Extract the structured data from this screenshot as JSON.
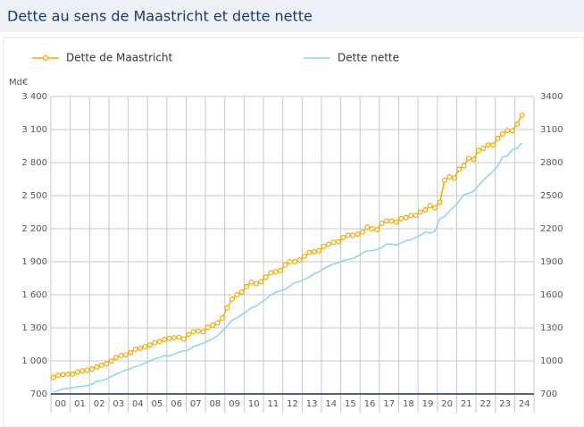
{
  "chart_data": {
    "type": "line",
    "title": "Dette au sens de Maastricht et dette nette",
    "y_label": "Md€",
    "categories": [
      "00",
      null,
      null,
      null,
      "01",
      null,
      null,
      null,
      "02",
      null,
      null,
      null,
      "03",
      null,
      null,
      null,
      "04",
      null,
      null,
      null,
      "05",
      null,
      null,
      null,
      "06",
      null,
      null,
      null,
      "07",
      null,
      null,
      null,
      "08",
      null,
      null,
      null,
      "09",
      null,
      null,
      null,
      "10",
      null,
      null,
      null,
      "11",
      null,
      null,
      null,
      "12",
      null,
      null,
      null,
      "13",
      null,
      null,
      null,
      "14",
      null,
      null,
      null,
      "15",
      null,
      null,
      null,
      "16",
      null,
      null,
      null,
      "17",
      null,
      null,
      null,
      "18",
      null,
      null,
      null,
      "19",
      null,
      null,
      null,
      "20",
      null,
      null,
      null,
      "21",
      null,
      null,
      null,
      "22",
      null,
      null,
      null,
      "23",
      null,
      null,
      null,
      "24",
      null
    ],
    "series": [
      {
        "name": "Dette de Maastricht",
        "color": "#f5a800",
        "markers": true,
        "values": [
          850,
          870,
          875,
          880,
          880,
          900,
          910,
          915,
          925,
          945,
          960,
          975,
          1000,
          1030,
          1050,
          1055,
          1075,
          1105,
          1115,
          1130,
          1145,
          1165,
          1175,
          1195,
          1205,
          1210,
          1215,
          1200,
          1240,
          1265,
          1270,
          1265,
          1305,
          1325,
          1345,
          1390,
          1480,
          1560,
          1600,
          1625,
          1675,
          1715,
          1700,
          1720,
          1760,
          1800,
          1810,
          1820,
          1870,
          1900,
          1900,
          1915,
          1950,
          1985,
          1990,
          2000,
          2040,
          2060,
          2075,
          2080,
          2120,
          2140,
          2140,
          2150,
          2170,
          2215,
          2200,
          2190,
          2250,
          2270,
          2270,
          2260,
          2290,
          2300,
          2320,
          2320,
          2350,
          2370,
          2410,
          2390,
          2440,
          2640,
          2670,
          2660,
          2740,
          2770,
          2840,
          2830,
          2910,
          2930,
          2960,
          2960,
          3020,
          3060,
          3090,
          3090,
          3150,
          3230
        ]
      },
      {
        "name": "Dette nette",
        "color": "#8fd3ec",
        "markers": false,
        "values": [
          720,
          730,
          745,
          750,
          755,
          765,
          770,
          775,
          790,
          815,
          820,
          835,
          860,
          880,
          900,
          915,
          930,
          950,
          960,
          980,
          1000,
          1020,
          1030,
          1050,
          1045,
          1060,
          1080,
          1090,
          1100,
          1130,
          1145,
          1160,
          1180,
          1200,
          1230,
          1270,
          1320,
          1370,
          1390,
          1420,
          1450,
          1480,
          1500,
          1530,
          1560,
          1600,
          1620,
          1640,
          1650,
          1680,
          1710,
          1720,
          1740,
          1760,
          1790,
          1810,
          1840,
          1860,
          1880,
          1890,
          1910,
          1920,
          1930,
          1950,
          1980,
          2000,
          2000,
          2010,
          2030,
          2060,
          2060,
          2050,
          2070,
          2090,
          2100,
          2120,
          2140,
          2170,
          2160,
          2180,
          2290,
          2310,
          2360,
          2400,
          2450,
          2510,
          2520,
          2540,
          2590,
          2640,
          2680,
          2720,
          2770,
          2850,
          2860,
          2920,
          2930,
          2980
        ]
      }
    ],
    "ylim": [
      700,
      3400
    ],
    "yticks": [
      700,
      {
        "value": 1000,
        "label": "1 000"
      },
      {
        "value": 1300,
        "label": "1 300"
      },
      {
        "value": 1600,
        "label": "1 600"
      },
      {
        "value": 1900,
        "label": "1 900"
      },
      {
        "value": 2200,
        "label": "2 200"
      },
      {
        "value": 2500,
        "label": "2 500"
      },
      {
        "value": 2800,
        "label": "2 800"
      },
      {
        "value": 3100,
        "label": "3 100"
      },
      {
        "value": 3400,
        "label": "3 400"
      }
    ],
    "y2lim": [
      700,
      3400
    ],
    "y2ticks": [
      700,
      1000,
      1300,
      1600,
      1900,
      2200,
      2500,
      2800,
      3100,
      3400
    ],
    "grid": true,
    "legend": "top"
  }
}
